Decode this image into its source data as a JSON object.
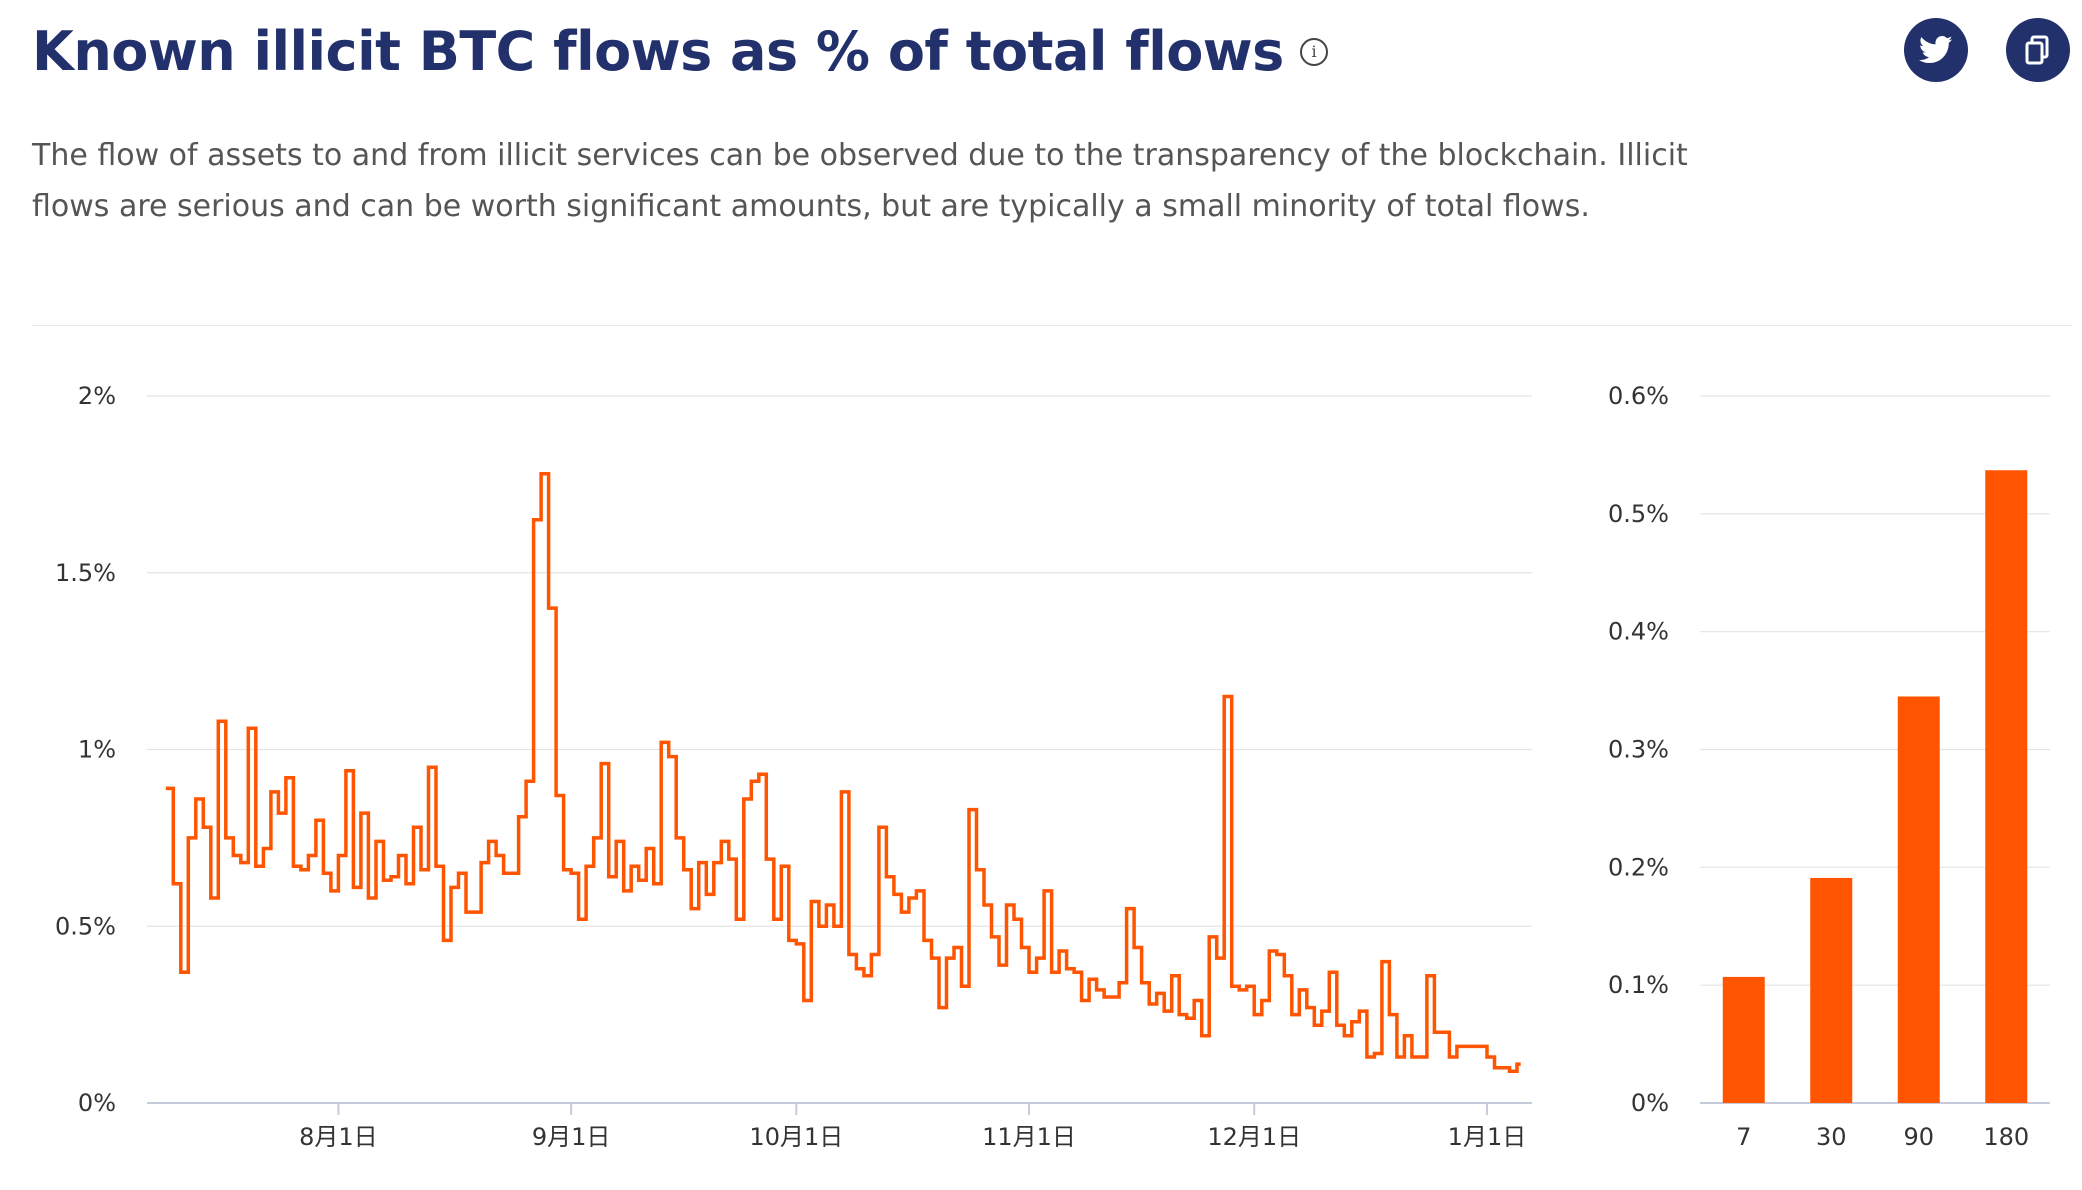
{
  "header": {
    "title": "Known illicit BTC flows as % of total flows",
    "info_icon": "info-icon",
    "description": "The flow of assets to and from illicit services can be observed due to the transparency of the blockchain. Illicit flows are serious and can be worth significant amounts, but are typically a small minority of total flows."
  },
  "share": {
    "twitter_icon": "twitter-icon",
    "copy_icon": "copy-icon",
    "button_color": "#22306b"
  },
  "chart_data": [
    {
      "type": "line",
      "step": true,
      "color": "#ff5500",
      "ylim": [
        0,
        2
      ],
      "y_ticks": [
        0,
        0.5,
        1,
        1.5,
        2
      ],
      "y_tick_labels": [
        "0%",
        "0.5%",
        "1%",
        "1.5%",
        "2%"
      ],
      "x_ticks": [
        "2023-08-01",
        "2023-09-01",
        "2023-10-01",
        "2023-11-01",
        "2023-12-01",
        "2024-01-01"
      ],
      "x_tick_labels": [
        "8月1日",
        "9月1日",
        "10月1日",
        "11月1日",
        "12月1日",
        "1月1日"
      ],
      "xlim": [
        "2023-07-07",
        "2024-01-07"
      ],
      "x": [
        "2023-07-09",
        "2023-07-10",
        "2023-07-11",
        "2023-07-12",
        "2023-07-13",
        "2023-07-14",
        "2023-07-15",
        "2023-07-16",
        "2023-07-17",
        "2023-07-18",
        "2023-07-19",
        "2023-07-20",
        "2023-07-21",
        "2023-07-22",
        "2023-07-23",
        "2023-07-24",
        "2023-07-25",
        "2023-07-26",
        "2023-07-27",
        "2023-07-28",
        "2023-07-29",
        "2023-07-30",
        "2023-07-31",
        "2023-08-01",
        "2023-08-02",
        "2023-08-03",
        "2023-08-04",
        "2023-08-05",
        "2023-08-06",
        "2023-08-07",
        "2023-08-08",
        "2023-08-09",
        "2023-08-10",
        "2023-08-11",
        "2023-08-12",
        "2023-08-13",
        "2023-08-14",
        "2023-08-15",
        "2023-08-16",
        "2023-08-17",
        "2023-08-18",
        "2023-08-19",
        "2023-08-20",
        "2023-08-21",
        "2023-08-22",
        "2023-08-23",
        "2023-08-24",
        "2023-08-25",
        "2023-08-26",
        "2023-08-27",
        "2023-08-28",
        "2023-08-29",
        "2023-08-30",
        "2023-08-31",
        "2023-09-01",
        "2023-09-02",
        "2023-09-03",
        "2023-09-04",
        "2023-09-05",
        "2023-09-06",
        "2023-09-07",
        "2023-09-08",
        "2023-09-09",
        "2023-09-10",
        "2023-09-11",
        "2023-09-12",
        "2023-09-13",
        "2023-09-14",
        "2023-09-15",
        "2023-09-16",
        "2023-09-17",
        "2023-09-18",
        "2023-09-19",
        "2023-09-20",
        "2023-09-21",
        "2023-09-22",
        "2023-09-23",
        "2023-09-24",
        "2023-09-25",
        "2023-09-26",
        "2023-09-27",
        "2023-09-28",
        "2023-09-29",
        "2023-09-30",
        "2023-10-01",
        "2023-10-02",
        "2023-10-03",
        "2023-10-04",
        "2023-10-05",
        "2023-10-06",
        "2023-10-07",
        "2023-10-08",
        "2023-10-09",
        "2023-10-10",
        "2023-10-11",
        "2023-10-12",
        "2023-10-13",
        "2023-10-14",
        "2023-10-15",
        "2023-10-16",
        "2023-10-17",
        "2023-10-18",
        "2023-10-19",
        "2023-10-20",
        "2023-10-21",
        "2023-10-22",
        "2023-10-23",
        "2023-10-24",
        "2023-10-25",
        "2023-10-26",
        "2023-10-27",
        "2023-10-28",
        "2023-10-29",
        "2023-10-30",
        "2023-10-31",
        "2023-11-01",
        "2023-11-02",
        "2023-11-03",
        "2023-11-04",
        "2023-11-05",
        "2023-11-06",
        "2023-11-07",
        "2023-11-08",
        "2023-11-09",
        "2023-11-10",
        "2023-11-11",
        "2023-11-12",
        "2023-11-13",
        "2023-11-14",
        "2023-11-15",
        "2023-11-16",
        "2023-11-17",
        "2023-11-18",
        "2023-11-19",
        "2023-11-20",
        "2023-11-21",
        "2023-11-22",
        "2023-11-23",
        "2023-11-24",
        "2023-11-25",
        "2023-11-26",
        "2023-11-27",
        "2023-11-28",
        "2023-11-29",
        "2023-11-30",
        "2023-12-01",
        "2023-12-02",
        "2023-12-03",
        "2023-12-04",
        "2023-12-05",
        "2023-12-06",
        "2023-12-07",
        "2023-12-08",
        "2023-12-09",
        "2023-12-10",
        "2023-12-11",
        "2023-12-12",
        "2023-12-13",
        "2023-12-14",
        "2023-12-15",
        "2023-12-16",
        "2023-12-17",
        "2023-12-18",
        "2023-12-19",
        "2023-12-20",
        "2023-12-21",
        "2023-12-22",
        "2023-12-23",
        "2023-12-24",
        "2023-12-25",
        "2023-12-26",
        "2023-12-27",
        "2023-12-28",
        "2023-12-29",
        "2023-12-30",
        "2023-12-31",
        "2024-01-01",
        "2024-01-02",
        "2024-01-03",
        "2024-01-04",
        "2024-01-05"
      ],
      "y": [
        0.89,
        0.62,
        0.37,
        0.75,
        0.86,
        0.78,
        0.58,
        1.08,
        0.75,
        0.7,
        0.68,
        1.06,
        0.67,
        0.72,
        0.88,
        0.82,
        0.92,
        0.67,
        0.66,
        0.7,
        0.8,
        0.65,
        0.6,
        0.7,
        0.94,
        0.61,
        0.82,
        0.58,
        0.74,
        0.63,
        0.64,
        0.7,
        0.62,
        0.78,
        0.66,
        0.95,
        0.67,
        0.46,
        0.61,
        0.65,
        0.54,
        0.54,
        0.68,
        0.74,
        0.7,
        0.65,
        0.65,
        0.81,
        0.91,
        1.65,
        1.78,
        1.4,
        0.87,
        0.66,
        0.65,
        0.52,
        0.67,
        0.75,
        0.96,
        0.64,
        0.74,
        0.6,
        0.67,
        0.63,
        0.72,
        0.62,
        1.02,
        0.98,
        0.75,
        0.66,
        0.55,
        0.68,
        0.59,
        0.68,
        0.74,
        0.69,
        0.52,
        0.86,
        0.91,
        0.93,
        0.69,
        0.52,
        0.67,
        0.46,
        0.45,
        0.29,
        0.57,
        0.5,
        0.56,
        0.5,
        0.88,
        0.42,
        0.38,
        0.36,
        0.42,
        0.78,
        0.64,
        0.59,
        0.54,
        0.58,
        0.6,
        0.46,
        0.41,
        0.27,
        0.41,
        0.44,
        0.33,
        0.83,
        0.66,
        0.56,
        0.47,
        0.39,
        0.56,
        0.52,
        0.44,
        0.37,
        0.41,
        0.6,
        0.37,
        0.43,
        0.38,
        0.37,
        0.29,
        0.35,
        0.32,
        0.3,
        0.3,
        0.34,
        0.55,
        0.44,
        0.34,
        0.28,
        0.31,
        0.26,
        0.36,
        0.25,
        0.24,
        0.29,
        0.19,
        0.47,
        0.41,
        1.15,
        0.33,
        0.32,
        0.33,
        0.25,
        0.29,
        0.43,
        0.42,
        0.36,
        0.25,
        0.32,
        0.27,
        0.22,
        0.26,
        0.37,
        0.22,
        0.19,
        0.23,
        0.26,
        0.13,
        0.14,
        0.4,
        0.25,
        0.13,
        0.19,
        0.13,
        0.13,
        0.36,
        0.2,
        0.2,
        0.13,
        0.16,
        0.16,
        0.16,
        0.16,
        0.13,
        0.1,
        0.1,
        0.09,
        0.11
      ]
    },
    {
      "type": "bar",
      "color": "#ff5500",
      "categories": [
        "7",
        "30",
        "90",
        "180"
      ],
      "values": [
        0.107,
        0.191,
        0.345,
        0.537
      ],
      "ylim": [
        0,
        0.6
      ],
      "y_ticks": [
        0,
        0.1,
        0.2,
        0.3,
        0.4,
        0.5,
        0.6
      ],
      "y_tick_labels": [
        "0%",
        "0.1%",
        "0.2%",
        "0.3%",
        "0.4%",
        "0.5%",
        "0.6%"
      ]
    }
  ]
}
